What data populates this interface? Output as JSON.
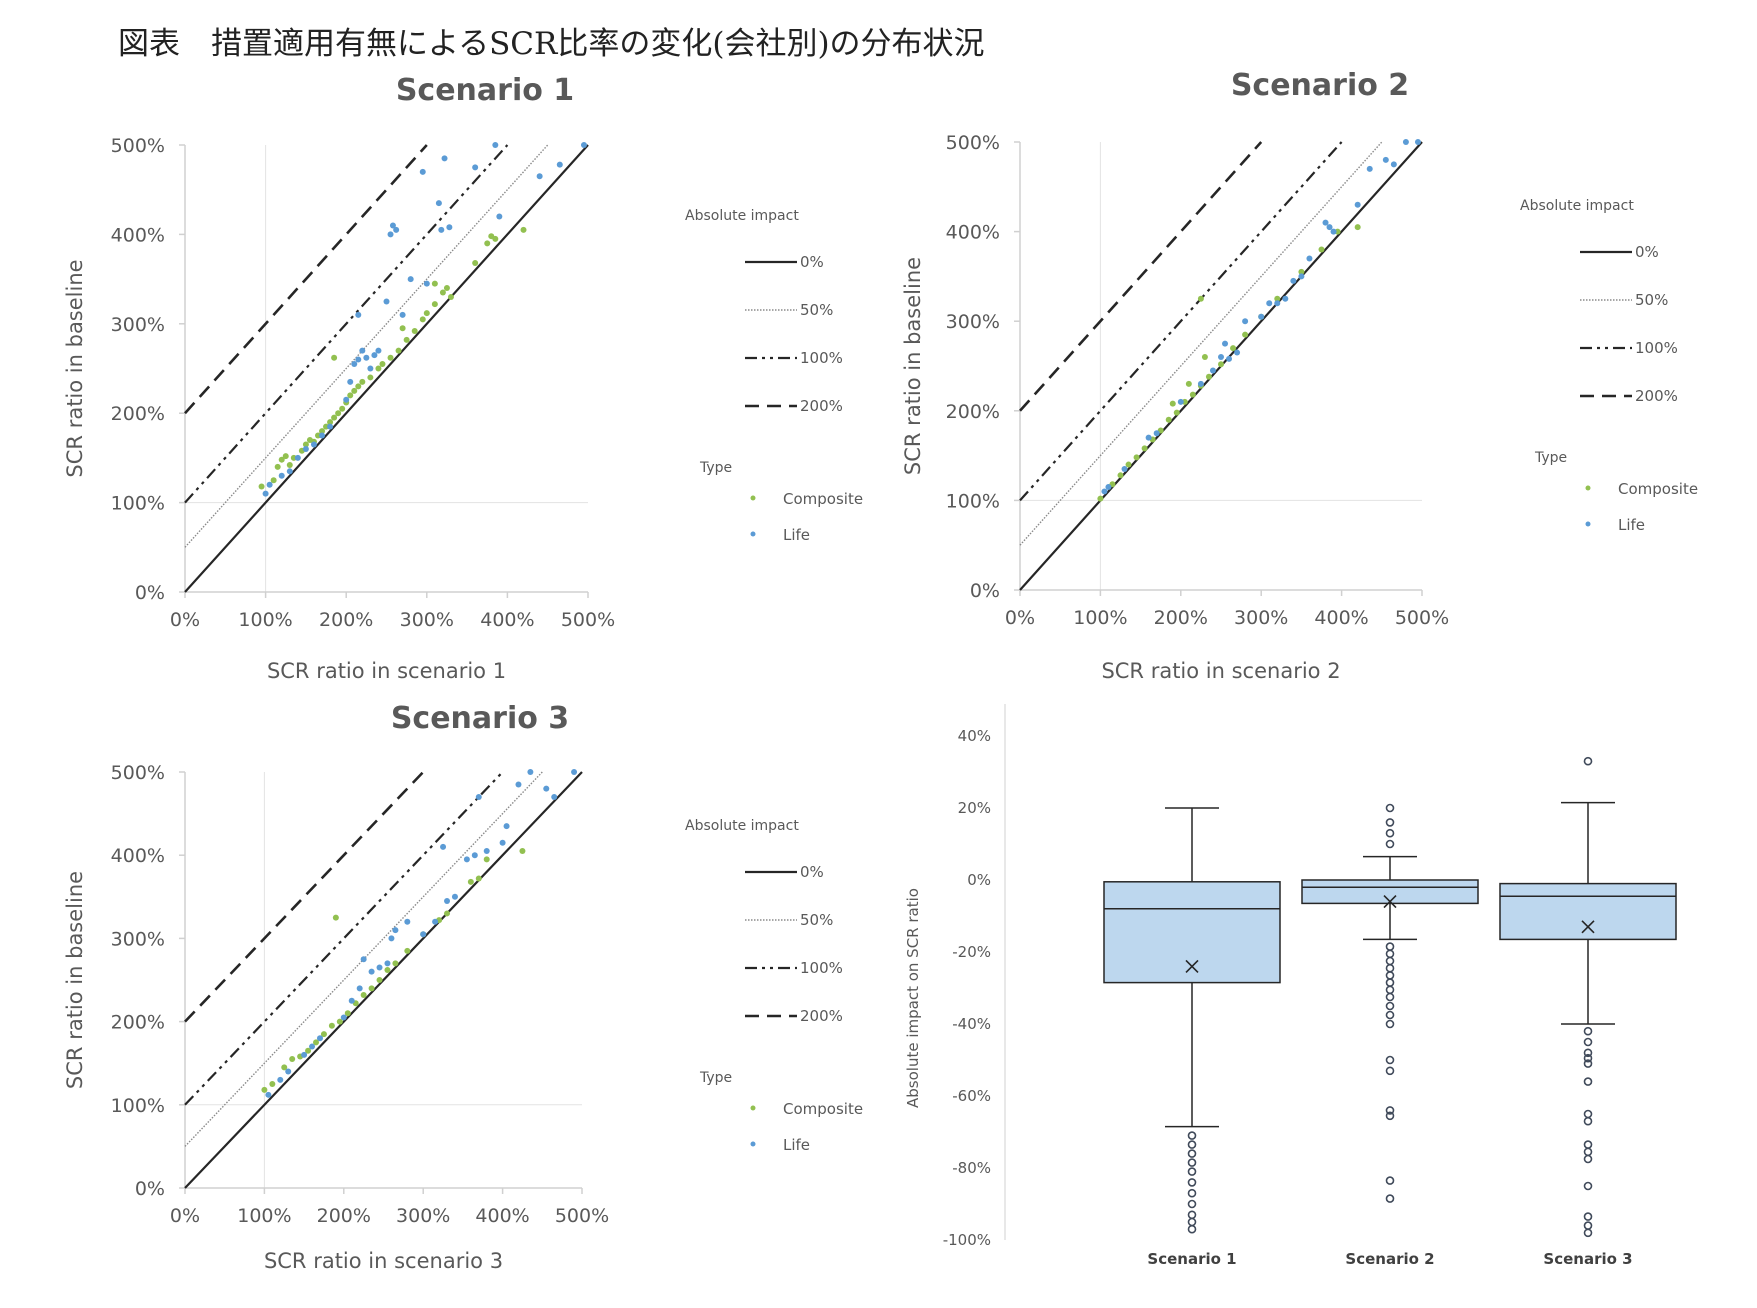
{
  "page_title": "図表　措置適用有無によるSCR比率の変化(会社別)の分布状況",
  "colors": {
    "composite": "#92c050",
    "life": "#5b9bd5",
    "box_fill": "#bdd7ee",
    "line": "#262626",
    "axis": "#d0d0d0"
  },
  "chart_data": [
    {
      "type": "scatter",
      "title": "Scenario 1",
      "xlabel": "SCR ratio in scenario 1",
      "ylabel": "SCR ratio in baseline",
      "xlim": [
        0,
        500
      ],
      "ylim": [
        0,
        500
      ],
      "x_ticks": [
        "0%",
        "100%",
        "200%",
        "300%",
        "400%",
        "500%"
      ],
      "y_ticks": [
        "0%",
        "100%",
        "200%",
        "300%",
        "400%",
        "500%"
      ],
      "reference_lines": [
        {
          "label": "0%",
          "offset": 0,
          "style": "solid"
        },
        {
          "label": "50%",
          "offset": 50,
          "style": "dotted"
        },
        {
          "label": "100%",
          "offset": 100,
          "style": "dashdot"
        },
        {
          "label": "200%",
          "offset": 200,
          "style": "dashed"
        }
      ],
      "legend": {
        "lines_title": "Absolute impact",
        "type_title": "Type",
        "position": "right"
      },
      "series": [
        {
          "name": "Composite",
          "points": [
            [
              95,
              118
            ],
            [
              110,
              125
            ],
            [
              115,
              140
            ],
            [
              120,
              148
            ],
            [
              125,
              152
            ],
            [
              130,
              142
            ],
            [
              135,
              150
            ],
            [
              145,
              158
            ],
            [
              150,
              165
            ],
            [
              155,
              170
            ],
            [
              160,
              168
            ],
            [
              165,
              175
            ],
            [
              170,
              180
            ],
            [
              175,
              185
            ],
            [
              180,
              190
            ],
            [
              185,
              195
            ],
            [
              190,
              200
            ],
            [
              195,
              205
            ],
            [
              200,
              212
            ],
            [
              205,
              220
            ],
            [
              210,
              225
            ],
            [
              215,
              230
            ],
            [
              220,
              235
            ],
            [
              230,
              240
            ],
            [
              240,
              250
            ],
            [
              245,
              255
            ],
            [
              255,
              262
            ],
            [
              265,
              270
            ],
            [
              275,
              282
            ],
            [
              285,
              292
            ],
            [
              295,
              305
            ],
            [
              300,
              312
            ],
            [
              310,
              322
            ],
            [
              320,
              335
            ],
            [
              325,
              340
            ],
            [
              330,
              330
            ],
            [
              360,
              368
            ],
            [
              375,
              390
            ],
            [
              380,
              398
            ],
            [
              385,
              395
            ],
            [
              420,
              405
            ],
            [
              185,
              262
            ],
            [
              270,
              295
            ],
            [
              310,
              345
            ]
          ]
        },
        {
          "name": "Life",
          "points": [
            [
              100,
              110
            ],
            [
              105,
              120
            ],
            [
              120,
              130
            ],
            [
              130,
              135
            ],
            [
              140,
              150
            ],
            [
              150,
              160
            ],
            [
              160,
              165
            ],
            [
              170,
              175
            ],
            [
              180,
              185
            ],
            [
              200,
              215
            ],
            [
              205,
              235
            ],
            [
              210,
              255
            ],
            [
              215,
              260
            ],
            [
              220,
              270
            ],
            [
              225,
              262
            ],
            [
              230,
              250
            ],
            [
              235,
              265
            ],
            [
              240,
              270
            ],
            [
              250,
              325
            ],
            [
              255,
              400
            ],
            [
              258,
              410
            ],
            [
              262,
              405
            ],
            [
              270,
              310
            ],
            [
              280,
              350
            ],
            [
              295,
              470
            ],
            [
              300,
              345
            ],
            [
              315,
              435
            ],
            [
              318,
              405
            ],
            [
              322,
              485
            ],
            [
              328,
              408
            ],
            [
              360,
              475
            ],
            [
              385,
              500
            ],
            [
              390,
              420
            ],
            [
              440,
              465
            ],
            [
              465,
              478
            ],
            [
              495,
              500
            ],
            [
              215,
              310
            ]
          ]
        }
      ]
    },
    {
      "type": "scatter",
      "title": "Scenario 2",
      "xlabel": "SCR ratio in scenario 2",
      "ylabel": "SCR ratio in baseline",
      "xlim": [
        0,
        500
      ],
      "ylim": [
        0,
        500
      ],
      "x_ticks": [
        "0%",
        "100%",
        "200%",
        "300%",
        "400%",
        "500%"
      ],
      "y_ticks": [
        "0%",
        "100%",
        "200%",
        "300%",
        "400%",
        "500%"
      ],
      "reference_lines": [
        {
          "label": "0%",
          "offset": 0,
          "style": "solid"
        },
        {
          "label": "50%",
          "offset": 50,
          "style": "dotted"
        },
        {
          "label": "100%",
          "offset": 100,
          "style": "dashdot"
        },
        {
          "label": "200%",
          "offset": 200,
          "style": "dashed"
        }
      ],
      "legend": {
        "lines_title": "Absolute impact",
        "type_title": "Type",
        "position": "right"
      },
      "series": [
        {
          "name": "Composite",
          "points": [
            [
              100,
              102
            ],
            [
              115,
              118
            ],
            [
              125,
              128
            ],
            [
              135,
              140
            ],
            [
              145,
              148
            ],
            [
              155,
              158
            ],
            [
              165,
              168
            ],
            [
              175,
              178
            ],
            [
              185,
              190
            ],
            [
              195,
              198
            ],
            [
              205,
              210
            ],
            [
              215,
              218
            ],
            [
              225,
              228
            ],
            [
              235,
              238
            ],
            [
              250,
              252
            ],
            [
              265,
              270
            ],
            [
              280,
              285
            ],
            [
              300,
              305
            ],
            [
              320,
              325
            ],
            [
              350,
              355
            ],
            [
              375,
              380
            ],
            [
              395,
              400
            ],
            [
              420,
              405
            ],
            [
              190,
              208
            ],
            [
              210,
              230
            ],
            [
              225,
              325
            ],
            [
              230,
              260
            ]
          ]
        },
        {
          "name": "Life",
          "points": [
            [
              105,
              110
            ],
            [
              110,
              115
            ],
            [
              130,
              135
            ],
            [
              160,
              170
            ],
            [
              170,
              175
            ],
            [
              200,
              210
            ],
            [
              225,
              230
            ],
            [
              240,
              245
            ],
            [
              250,
              260
            ],
            [
              255,
              275
            ],
            [
              260,
              258
            ],
            [
              270,
              265
            ],
            [
              280,
              300
            ],
            [
              300,
              305
            ],
            [
              310,
              320
            ],
            [
              320,
              320
            ],
            [
              330,
              325
            ],
            [
              340,
              345
            ],
            [
              350,
              350
            ],
            [
              360,
              370
            ],
            [
              380,
              410
            ],
            [
              385,
              405
            ],
            [
              390,
              400
            ],
            [
              420,
              430
            ],
            [
              435,
              470
            ],
            [
              455,
              480
            ],
            [
              465,
              475
            ],
            [
              480,
              500
            ],
            [
              495,
              500
            ]
          ]
        }
      ]
    },
    {
      "type": "scatter",
      "title": "Scenario 3",
      "xlabel": "SCR ratio in scenario 3",
      "ylabel": "SCR ratio in baseline",
      "xlim": [
        0,
        500
      ],
      "ylim": [
        0,
        500
      ],
      "x_ticks": [
        "0%",
        "100%",
        "200%",
        "300%",
        "400%",
        "500%"
      ],
      "y_ticks": [
        "0%",
        "100%",
        "200%",
        "300%",
        "400%",
        "500%"
      ],
      "reference_lines": [
        {
          "label": "0%",
          "offset": 0,
          "style": "solid"
        },
        {
          "label": "50%",
          "offset": 50,
          "style": "dotted"
        },
        {
          "label": "100%",
          "offset": 100,
          "style": "dashdot"
        },
        {
          "label": "200%",
          "offset": 200,
          "style": "dashed"
        }
      ],
      "legend": {
        "lines_title": "Absolute impact",
        "type_title": "Type",
        "position": "right"
      },
      "series": [
        {
          "name": "Composite",
          "points": [
            [
              100,
              118
            ],
            [
              110,
              125
            ],
            [
              125,
              145
            ],
            [
              135,
              155
            ],
            [
              145,
              158
            ],
            [
              155,
              165
            ],
            [
              165,
              175
            ],
            [
              175,
              185
            ],
            [
              185,
              195
            ],
            [
              195,
              200
            ],
            [
              205,
              210
            ],
            [
              215,
              222
            ],
            [
              225,
              232
            ],
            [
              235,
              240
            ],
            [
              245,
              250
            ],
            [
              255,
              262
            ],
            [
              265,
              270
            ],
            [
              280,
              285
            ],
            [
              300,
              305
            ],
            [
              320,
              322
            ],
            [
              330,
              330
            ],
            [
              360,
              368
            ],
            [
              370,
              372
            ],
            [
              380,
              395
            ],
            [
              425,
              405
            ],
            [
              190,
              325
            ]
          ]
        },
        {
          "name": "Life",
          "points": [
            [
              105,
              112
            ],
            [
              120,
              130
            ],
            [
              130,
              140
            ],
            [
              150,
              160
            ],
            [
              160,
              170
            ],
            [
              170,
              180
            ],
            [
              200,
              205
            ],
            [
              210,
              225
            ],
            [
              220,
              240
            ],
            [
              225,
              275
            ],
            [
              235,
              260
            ],
            [
              245,
              265
            ],
            [
              255,
              270
            ],
            [
              260,
              300
            ],
            [
              265,
              310
            ],
            [
              280,
              320
            ],
            [
              300,
              305
            ],
            [
              315,
              320
            ],
            [
              325,
              410
            ],
            [
              330,
              345
            ],
            [
              340,
              350
            ],
            [
              355,
              395
            ],
            [
              365,
              400
            ],
            [
              370,
              470
            ],
            [
              380,
              405
            ],
            [
              400,
              415
            ],
            [
              405,
              435
            ],
            [
              420,
              485
            ],
            [
              435,
              500
            ],
            [
              455,
              480
            ],
            [
              465,
              470
            ],
            [
              490,
              500
            ]
          ]
        }
      ]
    },
    {
      "type": "box",
      "title": "",
      "xlabel": "",
      "ylabel": "Absolute impact on SCR ratio",
      "ylim": [
        -100,
        40
      ],
      "y_ticks": [
        {
          "v": 40,
          "label": "40%"
        },
        {
          "v": 20,
          "label": "20%"
        },
        {
          "v": 0,
          "label": "0%"
        },
        {
          "v": -20,
          "label": "-20%"
        },
        {
          "v": -40,
          "label": "-40%"
        },
        {
          "v": -60,
          "label": "-60%"
        },
        {
          "v": -80,
          "label": "-80%"
        },
        {
          "v": -100,
          "label": "-100%"
        }
      ],
      "categories": [
        "Scenario 1",
        "Scenario 2",
        "Scenario 3"
      ],
      "boxes": [
        {
          "whisker_high": 20,
          "q3": -0.5,
          "median": -8,
          "q1": -28.5,
          "whisker_low": -68.5,
          "mean": -24,
          "outliers": [
            -71,
            -73.5,
            -76,
            -78.5,
            -81,
            -84,
            -87,
            -90,
            -93,
            -95,
            -97
          ]
        },
        {
          "whisker_high": 6.5,
          "q3": 0,
          "median": -2,
          "q1": -6.5,
          "whisker_low": -16.5,
          "mean": -6,
          "outliers": [
            20,
            16,
            13,
            10,
            -18.5,
            -20.5,
            -22.5,
            -24.5,
            -26.5,
            -28.5,
            -30.5,
            -32.5,
            -35,
            -37.5,
            -40,
            -50,
            -53,
            -64,
            -65.5,
            -83.5,
            -88.5
          ]
        },
        {
          "whisker_high": 21.5,
          "q3": -1,
          "median": -4.5,
          "q1": -16.5,
          "whisker_low": -40,
          "mean": -13,
          "outliers": [
            33,
            -42,
            -45,
            -48,
            -49.5,
            -51,
            -56,
            -65,
            -67,
            -73.5,
            -75.5,
            -77.5,
            -85,
            -93.5,
            -96,
            -98
          ]
        }
      ]
    }
  ]
}
